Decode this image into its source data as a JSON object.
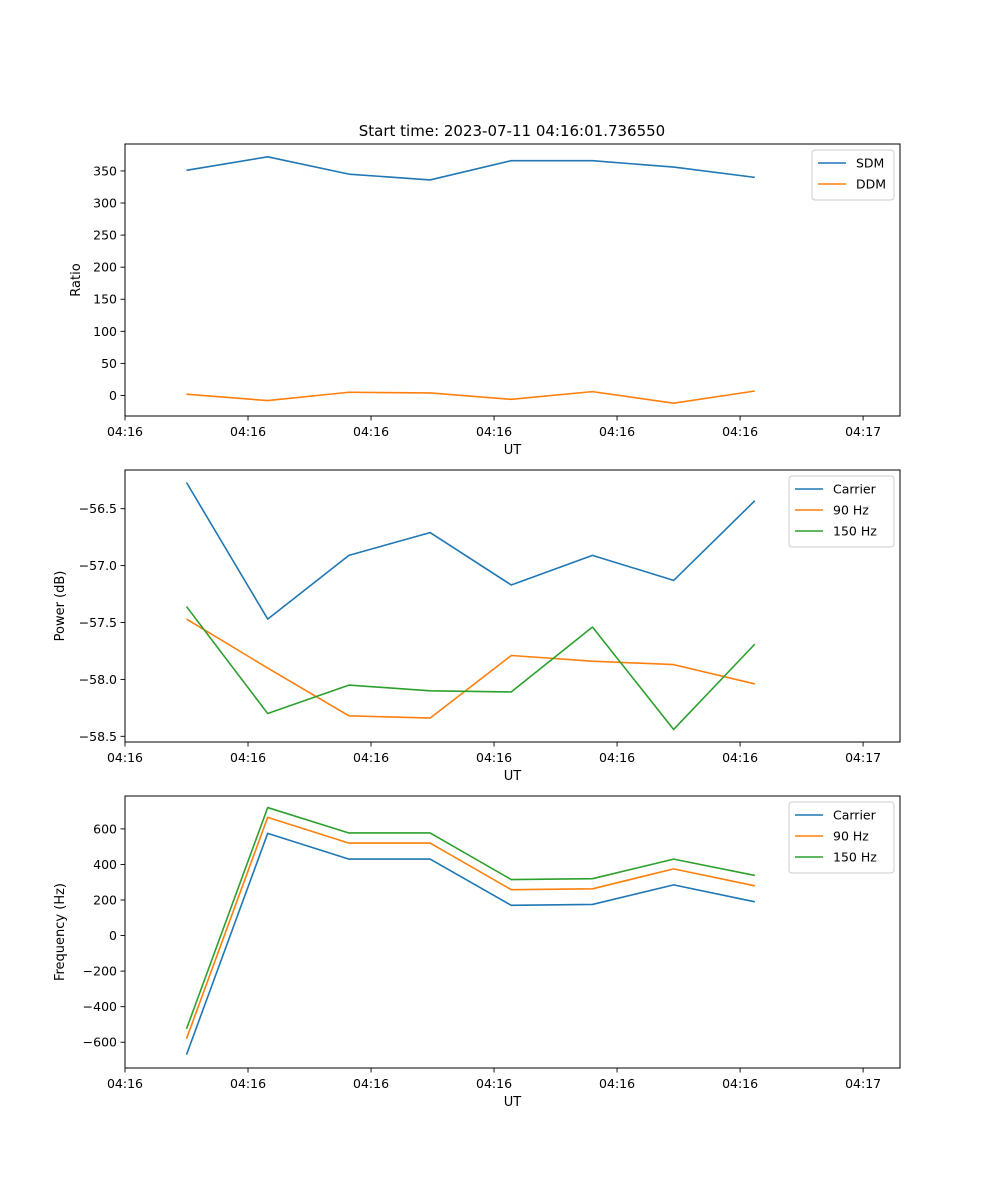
{
  "figure_title": "Start time: 2023-07-11 04:16:01.736550",
  "colors": {
    "blue": "#1f77b4",
    "orange": "#ff7f0e",
    "green": "#2ca02c"
  },
  "chart_data": [
    {
      "type": "line",
      "title": "Start time: 2023-07-11 04:16:01.736550",
      "xlabel": "UT",
      "ylabel": "Ratio",
      "xlim": [
        0,
        9.45
      ],
      "ylim": [
        -32,
        392
      ],
      "x_ticks": [
        0,
        1.5,
        3,
        4.5,
        6,
        7.5,
        9
      ],
      "x_tick_labels": [
        "04:16",
        "04:16",
        "04:16",
        "04:16",
        "04:16",
        "04:16",
        "04:17"
      ],
      "y_ticks": [
        0,
        50,
        100,
        150,
        200,
        250,
        300,
        350
      ],
      "y_tick_labels": [
        "0",
        "50",
        "100",
        "150",
        "200",
        "250",
        "300",
        "350"
      ],
      "x": [
        0.75,
        1.74,
        2.73,
        3.72,
        4.71,
        5.7,
        6.69,
        7.68
      ],
      "series": [
        {
          "name": "SDM",
          "color": "#1f77b4",
          "values": [
            351,
            372,
            345,
            336,
            366,
            366,
            356,
            340
          ]
        },
        {
          "name": "DDM",
          "color": "#ff7f0e",
          "values": [
            2,
            -8,
            5,
            4,
            -6,
            6,
            -12,
            7
          ]
        }
      ],
      "legend": "top-right"
    },
    {
      "type": "line",
      "title": "",
      "xlabel": "UT",
      "ylabel": "Power (dB)",
      "xlim": [
        0,
        9.45
      ],
      "ylim": [
        -58.55,
        -56.16
      ],
      "x_ticks": [
        0,
        1.5,
        3,
        4.5,
        6,
        7.5,
        9
      ],
      "x_tick_labels": [
        "04:16",
        "04:16",
        "04:16",
        "04:16",
        "04:16",
        "04:16",
        "04:17"
      ],
      "y_ticks": [
        -58.5,
        -58.0,
        -57.5,
        -57.0,
        -56.5
      ],
      "y_tick_labels": [
        "−58.5",
        "−58.0",
        "−57.5",
        "−57.0",
        "−56.5"
      ],
      "x": [
        0.75,
        1.74,
        2.73,
        3.72,
        4.71,
        5.7,
        6.69,
        7.68
      ],
      "series": [
        {
          "name": "Carrier",
          "color": "#1f77b4",
          "values": [
            -56.27,
            -57.47,
            -56.91,
            -56.71,
            -57.17,
            -56.91,
            -57.13,
            -56.43
          ]
        },
        {
          "name": "90 Hz",
          "color": "#ff7f0e",
          "values": [
            -57.47,
            -57.9,
            -58.32,
            -58.34,
            -57.79,
            -57.84,
            -57.87,
            -58.04
          ]
        },
        {
          "name": "150 Hz",
          "color": "#2ca02c",
          "values": [
            -57.36,
            -58.3,
            -58.05,
            -58.1,
            -58.11,
            -57.54,
            -58.44,
            -57.69
          ]
        }
      ],
      "legend": "top-right"
    },
    {
      "type": "line",
      "title": "",
      "xlabel": "UT",
      "ylabel": "Frequency (Hz)",
      "xlim": [
        0,
        9.45
      ],
      "ylim": [
        -745,
        785
      ],
      "x_ticks": [
        0,
        1.5,
        3,
        4.5,
        6,
        7.5,
        9
      ],
      "x_tick_labels": [
        "04:16",
        "04:16",
        "04:16",
        "04:16",
        "04:16",
        "04:16",
        "04:17"
      ],
      "y_ticks": [
        -600,
        -400,
        -200,
        0,
        200,
        400,
        600
      ],
      "y_tick_labels": [
        "−600",
        "−400",
        "−200",
        "0",
        "200",
        "400",
        "600"
      ],
      "x": [
        0.75,
        1.74,
        2.73,
        3.72,
        4.71,
        5.7,
        6.69,
        7.68
      ],
      "series": [
        {
          "name": "Carrier",
          "color": "#1f77b4",
          "values": [
            -670,
            575,
            430,
            430,
            170,
            175,
            285,
            190
          ]
        },
        {
          "name": "90 Hz",
          "color": "#ff7f0e",
          "values": [
            -580,
            665,
            520,
            520,
            258,
            263,
            375,
            280
          ]
        },
        {
          "name": "150 Hz",
          "color": "#2ca02c",
          "values": [
            -525,
            720,
            577,
            577,
            315,
            320,
            430,
            338
          ]
        }
      ],
      "legend": "top-right"
    }
  ]
}
